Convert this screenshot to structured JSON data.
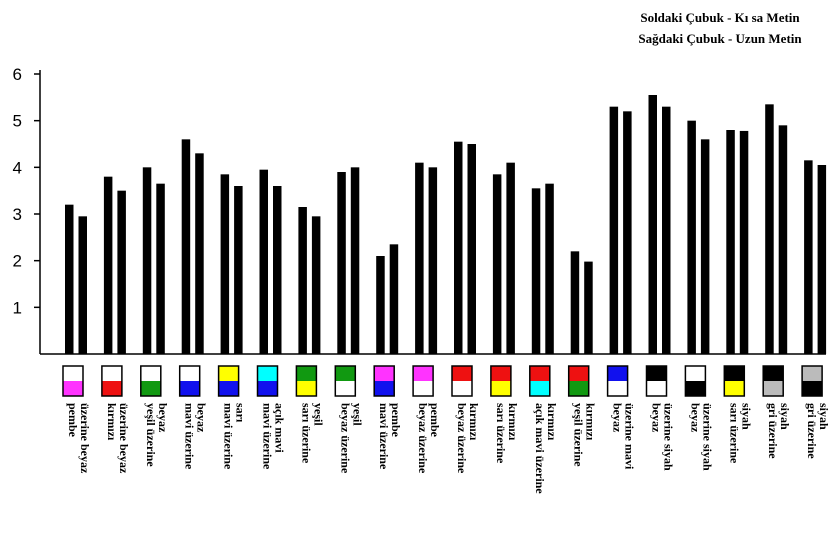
{
  "chart_data": {
    "type": "bar",
    "legend": {
      "left_bar": "Soldaki Çubuk - Kı sa Metin",
      "right_bar": "Sağdaki Çubuk - Uzun Metin",
      "placement": "top-right"
    },
    "ylim": [
      0,
      6
    ],
    "yticks": [
      "1",
      "2",
      "3",
      "4",
      "5",
      "6"
    ],
    "categories": [
      {
        "label": [
          "pembe",
          "üzerine beyaz"
        ],
        "swatch_top": "#ffffff",
        "swatch_bottom": "#ff33ff"
      },
      {
        "label": [
          "kırmızı",
          "üzerine beyaz"
        ],
        "swatch_top": "#ffffff",
        "swatch_bottom": "#ee1111"
      },
      {
        "label": [
          "yeşil üzerine",
          "beyaz"
        ],
        "swatch_top": "#ffffff",
        "swatch_bottom": "#119911"
      },
      {
        "label": [
          "mavi üzerine",
          "beyaz"
        ],
        "swatch_top": "#ffffff",
        "swatch_bottom": "#1111ee"
      },
      {
        "label": [
          "mavi üzerine",
          "sarı"
        ],
        "swatch_top": "#ffff00",
        "swatch_bottom": "#1111ee"
      },
      {
        "label": [
          "mavi üzerine",
          "açık mavi"
        ],
        "swatch_top": "#00ffff",
        "swatch_bottom": "#1111ee"
      },
      {
        "label": [
          "sarı üzerine",
          "yeşil"
        ],
        "swatch_top": "#119911",
        "swatch_bottom": "#ffff00"
      },
      {
        "label": [
          "beyaz üzerine",
          "yeşil"
        ],
        "swatch_top": "#119911",
        "swatch_bottom": "#ffffff"
      },
      {
        "label": [
          "mavi üzerine",
          "pembe"
        ],
        "swatch_top": "#ff33ff",
        "swatch_bottom": "#1111ee"
      },
      {
        "label": [
          "beyaz üzerine",
          "pembe"
        ],
        "swatch_top": "#ff33ff",
        "swatch_bottom": "#ffffff"
      },
      {
        "label": [
          "beyaz üzerine",
          "kırmızı"
        ],
        "swatch_top": "#ee1111",
        "swatch_bottom": "#ffffff"
      },
      {
        "label": [
          "sarı üzerine",
          "kırmızı"
        ],
        "swatch_top": "#ee1111",
        "swatch_bottom": "#ffff00"
      },
      {
        "label": [
          "açık mavi üzerine",
          "kırmızı"
        ],
        "swatch_top": "#ee1111",
        "swatch_bottom": "#00ffff"
      },
      {
        "label": [
          "yeşil üzerine",
          "kırmızı"
        ],
        "swatch_top": "#ee1111",
        "swatch_bottom": "#119911"
      },
      {
        "label": [
          "beyaz",
          "üzerine mavi"
        ],
        "swatch_top": "#1111ee",
        "swatch_bottom": "#ffffff"
      },
      {
        "label": [
          "beyaz",
          "üzerine siyah"
        ],
        "swatch_top": "#000000",
        "swatch_bottom": "#ffffff"
      },
      {
        "label": [
          "beyaz",
          "üzerine siyah"
        ],
        "swatch_top": "#ffffff",
        "swatch_bottom": "#000000"
      },
      {
        "label": [
          "sarı üzerine",
          "siyah"
        ],
        "swatch_top": "#000000",
        "swatch_bottom": "#ffff00"
      },
      {
        "label": [
          "gri üzerine",
          "siyah"
        ],
        "swatch_top": "#000000",
        "swatch_bottom": "#bbbbbb"
      },
      {
        "label": [
          "gri üzerine",
          "siyah"
        ],
        "swatch_top": "#bbbbbb",
        "swatch_bottom": "#000000"
      }
    ],
    "series": [
      {
        "values": [
          3.2,
          3.8,
          4.0,
          4.6,
          3.85,
          3.95,
          3.15,
          3.9,
          2.1,
          4.1,
          4.55,
          3.85,
          3.55,
          2.2,
          5.3,
          5.55,
          5.0,
          4.8,
          5.35,
          4.15
        ]
      },
      {
        "values": [
          2.95,
          3.5,
          3.65,
          4.3,
          3.6,
          3.6,
          2.95,
          4.0,
          2.35,
          4.0,
          4.5,
          4.1,
          3.65,
          1.98,
          5.2,
          5.3,
          4.6,
          4.78,
          4.9,
          4.05
        ]
      }
    ],
    "bar_color": "#000000",
    "grid": false
  }
}
